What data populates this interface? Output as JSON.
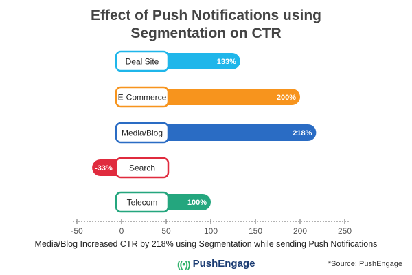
{
  "chart_data": {
    "type": "bar",
    "orientation": "horizontal",
    "title": "Effect of Push Notifications using Segmentation on CTR",
    "title_lines": [
      "Effect of Push Notifications using",
      "Segmentation on CTR"
    ],
    "categories": [
      "Deal Site",
      "E-Commerce",
      "Media/Blog",
      "Search",
      "Telecom"
    ],
    "values": [
      133,
      200,
      218,
      -33,
      100
    ],
    "value_labels": [
      "133%",
      "200%",
      "218%",
      "-33%",
      "100%"
    ],
    "colors": [
      "#1fb6ea",
      "#f7941d",
      "#2a6cc4",
      "#e02b3e",
      "#24a67e"
    ],
    "xlim": [
      -50,
      250
    ],
    "xticks": [
      -50,
      0,
      50,
      100,
      150,
      200,
      250
    ],
    "xlabel": "",
    "ylabel": "",
    "grid": false
  },
  "caption": "Media/Blog Increased CTR by 218% using Segmentation while sending Push Notifications",
  "brand": {
    "name": "PushEngage",
    "icon": "signal-wave-icon"
  },
  "source": "*Source; PushEngage"
}
